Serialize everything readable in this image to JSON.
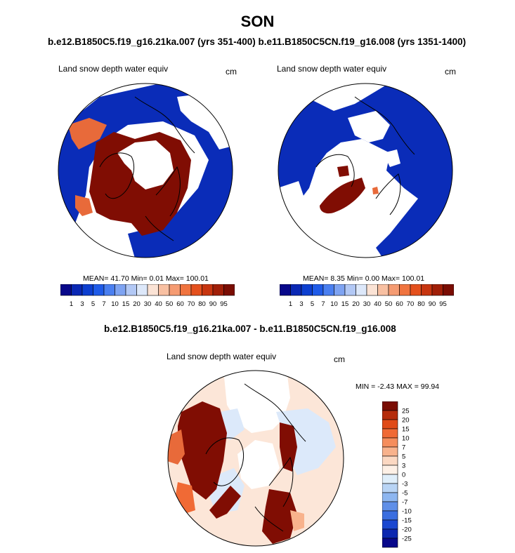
{
  "figure": {
    "title": "SON",
    "subtitle": "b.e12.B1850C5.f19_g16.21ka.007 (yrs 351-400) b.e11.B1850C5CN.f19_g16.008 (yrs 1351-1400)",
    "diff_title": "b.e12.B1850C5.f19_g16.21ka.007 - b.e11.B1850C5CN.f19_g16.008"
  },
  "panels": [
    {
      "variable": "Land snow depth water equiv",
      "units": "cm",
      "stats": "MEAN= 41.70 Min= 0.01 Max= 100.01"
    },
    {
      "variable": "Land snow depth water equiv",
      "units": "cm",
      "stats": "MEAN= 8.35 Min= 0.00 Max= 100.01"
    },
    {
      "variable": "Land snow depth water equiv",
      "units": "cm",
      "stats": "MIN = -2.43 MAX = 99.94"
    }
  ],
  "abs_colorbar": {
    "labels": [
      "1",
      "3",
      "5",
      "7",
      "10",
      "15",
      "20",
      "30",
      "40",
      "50",
      "60",
      "70",
      "80",
      "90",
      "95"
    ],
    "colors": [
      "#08088a",
      "#0a28b4",
      "#0d3fd0",
      "#1f5be8",
      "#4a7ff0",
      "#7ea3f2",
      "#b2c8f5",
      "#dde8fa",
      "#fbe3d5",
      "#f8c0a2",
      "#f59b72",
      "#f0743f",
      "#e4501d",
      "#c73510",
      "#a01f08",
      "#7a0d03"
    ]
  },
  "diff_colorbar": {
    "labels": [
      "25",
      "20",
      "15",
      "10",
      "7",
      "5",
      "3",
      "0",
      "-3",
      "-5",
      "-7",
      "-10",
      "-15",
      "-20",
      "-25"
    ],
    "colors": [
      "#7a0d03",
      "#b52c0b",
      "#e04a17",
      "#f06a35",
      "#f58d5c",
      "#f8b28c",
      "#fbd8c2",
      "#fdf0e6",
      "#dfeefa",
      "#b8d4f5",
      "#8db6f0",
      "#5f8fe8",
      "#3a6ee0",
      "#1a47d0",
      "#0c27b0",
      "#08088a"
    ]
  },
  "map_colors": {
    "ocean": "#ffffff",
    "deep_blue": "#0a2cb8",
    "dark_red": "#800d03",
    "orange": "#e86a3a",
    "pale_blue": "#dce9fa",
    "pale_peach": "#fce6d8",
    "coast": "#000000"
  }
}
